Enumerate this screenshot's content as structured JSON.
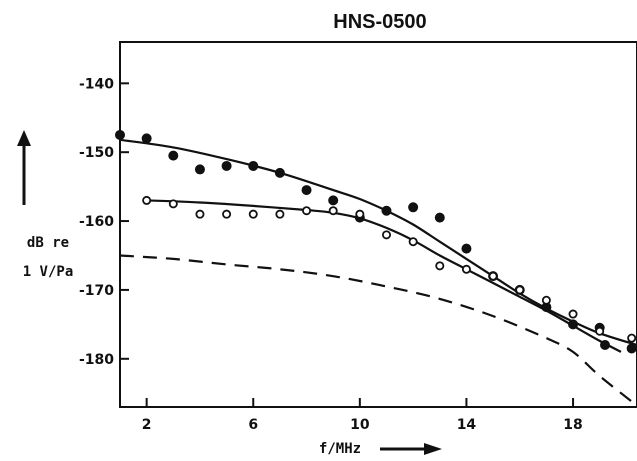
{
  "chart_data": {
    "type": "scatter",
    "title": "HNS-0500",
    "xlabel": "f/MHz",
    "ylabel_lines": [
      "dB re",
      "1 V/Pa"
    ],
    "xlim": [
      1,
      20.4
    ],
    "ylim": [
      -187,
      -134
    ],
    "x_ticks": [
      2,
      6,
      10,
      14,
      18
    ],
    "y_ticks": [
      -140,
      -150,
      -160,
      -170,
      -180
    ],
    "y_tick_labels": [
      "-140",
      "-150",
      "-160",
      "-170",
      "-180"
    ],
    "grid": false,
    "series": [
      {
        "marker": "filled-circle",
        "points": [
          [
            1,
            -147.5
          ],
          [
            2,
            -148
          ],
          [
            3,
            -150.5
          ],
          [
            4,
            -152.5
          ],
          [
            5,
            -152
          ],
          [
            6,
            -152
          ],
          [
            7,
            -153
          ],
          [
            8,
            -155.5
          ],
          [
            9,
            -157
          ],
          [
            10,
            -159.5
          ],
          [
            11,
            -158.5
          ],
          [
            12,
            -158
          ],
          [
            13,
            -159.5
          ],
          [
            14,
            -164
          ],
          [
            15,
            -168
          ],
          [
            16,
            -170
          ],
          [
            17,
            -172.5
          ],
          [
            18,
            -175
          ],
          [
            19,
            -175.5
          ],
          [
            19.2,
            -178
          ],
          [
            20.2,
            -178.5
          ]
        ]
      },
      {
        "marker": "open-circle",
        "points": [
          [
            2,
            -157
          ],
          [
            3,
            -157.5
          ],
          [
            4,
            -159
          ],
          [
            5,
            -159
          ],
          [
            6,
            -159
          ],
          [
            7,
            -159
          ],
          [
            8,
            -158.5
          ],
          [
            9,
            -158.5
          ],
          [
            10,
            -159
          ],
          [
            11,
            -162
          ],
          [
            12,
            -163
          ],
          [
            13,
            -166.5
          ],
          [
            14,
            -167
          ],
          [
            15,
            -168
          ],
          [
            16,
            -170
          ],
          [
            17,
            -171.5
          ],
          [
            18,
            -173.5
          ],
          [
            19,
            -176
          ],
          [
            20.2,
            -177
          ]
        ]
      }
    ],
    "curves": [
      {
        "style": "solid",
        "points": [
          [
            1,
            -148.2
          ],
          [
            3,
            -149.3
          ],
          [
            5,
            -151
          ],
          [
            7,
            -153
          ],
          [
            9,
            -155.5
          ],
          [
            10,
            -156.8
          ],
          [
            11,
            -158.5
          ],
          [
            12,
            -160.5
          ],
          [
            13,
            -163
          ],
          [
            14,
            -165.5
          ],
          [
            15,
            -168
          ],
          [
            16,
            -170.5
          ],
          [
            17,
            -172.7
          ],
          [
            18,
            -174.6
          ],
          [
            19,
            -176.3
          ],
          [
            20.4,
            -178
          ]
        ]
      },
      {
        "style": "solid",
        "points": [
          [
            2,
            -157
          ],
          [
            4,
            -157.3
          ],
          [
            6,
            -157.8
          ],
          [
            8,
            -158.4
          ],
          [
            9,
            -158.8
          ],
          [
            10,
            -159.6
          ],
          [
            11,
            -161
          ],
          [
            12,
            -162.8
          ],
          [
            13,
            -165
          ],
          [
            14,
            -167
          ],
          [
            15,
            -169
          ],
          [
            16,
            -171
          ],
          [
            17,
            -173
          ],
          [
            18,
            -175.2
          ],
          [
            19,
            -177.4
          ],
          [
            19.8,
            -179
          ]
        ]
      },
      {
        "style": "dashed",
        "points": [
          [
            1,
            -165
          ],
          [
            3,
            -165.5
          ],
          [
            5,
            -166.3
          ],
          [
            7,
            -167
          ],
          [
            9,
            -168
          ],
          [
            11,
            -169.5
          ],
          [
            13,
            -171.3
          ],
          [
            15,
            -173.8
          ],
          [
            17,
            -177
          ],
          [
            18,
            -179
          ],
          [
            19,
            -182.5
          ],
          [
            20.3,
            -186.5
          ]
        ]
      }
    ]
  }
}
